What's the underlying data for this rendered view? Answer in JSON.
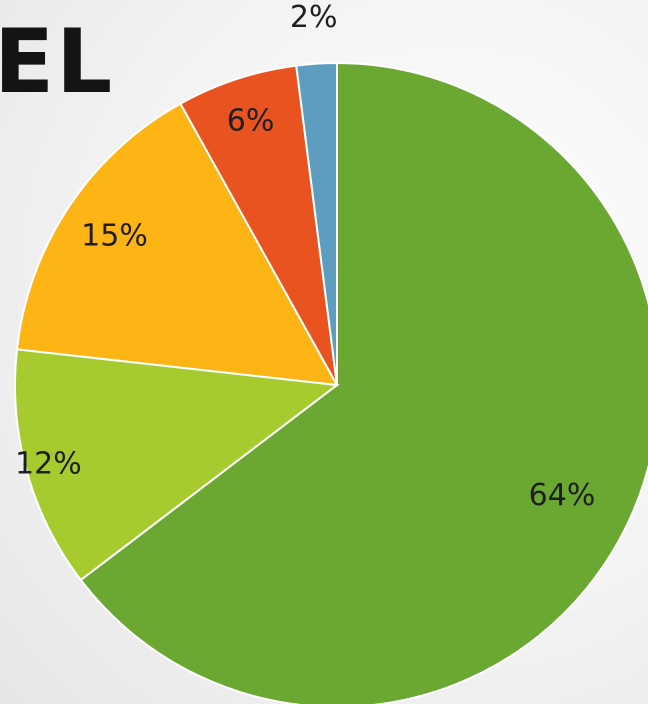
{
  "title_fragment": "EL",
  "chart_data": {
    "type": "pie",
    "title": "",
    "start_angle_deg": 0,
    "direction": "clockwise",
    "slices": [
      {
        "label": "64%",
        "value": 64,
        "color": "#6aa832"
      },
      {
        "label": "12%",
        "value": 12,
        "color": "#a6cb2f"
      },
      {
        "label": "15%",
        "value": 15,
        "color": "#fdb515"
      },
      {
        "label": "6%",
        "value": 6,
        "color": "#e8531f"
      },
      {
        "label": "2%",
        "value": 2,
        "color": "#5d9ec0"
      }
    ]
  }
}
